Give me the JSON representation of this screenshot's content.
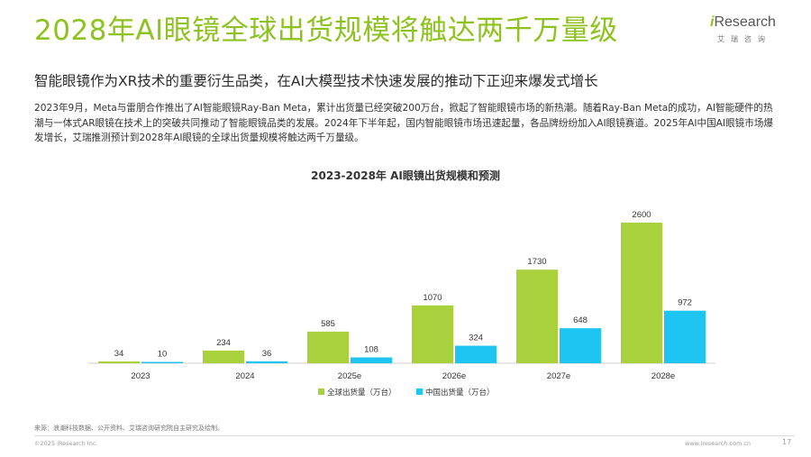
{
  "header": {
    "title": "2028年AI眼镜全球出货规模将触达两千万量级",
    "subtitle": "智能眼镜作为XR技术的重要衍生品类，在AI大模型技术快速发展的推动下正迎来爆发式增长",
    "paragraph": "2023年9月，Meta与雷朋合作推出了AI智能眼镜Ray-Ban Meta，累计出货量已经突破200万台，掀起了智能眼镜市场的新热潮。随着Ray-Ban Meta的成功，AI智能硬件的热潮与一体式AR眼镜在技术上的突破共同推动了智能眼镜品类的发展。2024年下半年起，国内智能眼镜市场迅速起量，各品牌纷纷加入AI眼镜赛道。2025年AI中国AI眼镜市场爆发增长，艾瑞推测预计到2028年AI眼镜的全球出货量规模将触达两千万量级。"
  },
  "logo": {
    "brand_i": "i",
    "brand_rest": "Research",
    "sub": "艾瑞咨询"
  },
  "chart_data": {
    "type": "bar",
    "title": "2023-2028年 AI眼镜出货规模和预测",
    "categories": [
      "2023",
      "2024",
      "2025e",
      "2026e",
      "2027e",
      "2028e"
    ],
    "series": [
      {
        "name": "全球出货量（万台）",
        "values": [
          34,
          234,
          585,
          1070,
          1730,
          2600
        ],
        "color": "#a9d13c"
      },
      {
        "name": "中国出货量（万台）",
        "values": [
          10,
          36,
          108,
          324,
          648,
          972
        ],
        "color": "#1ec5f2"
      }
    ],
    "ylim": [
      0,
      2600
    ],
    "grid": false,
    "legend": "bottom"
  },
  "footer": {
    "source": "来源：浪潮科技数据、公开资料、艾瑞咨询研究院自主研究及绘制。",
    "copyright": "©2025 iResearch Inc.",
    "website": "www.iresearch.com.cn",
    "page": "17"
  }
}
